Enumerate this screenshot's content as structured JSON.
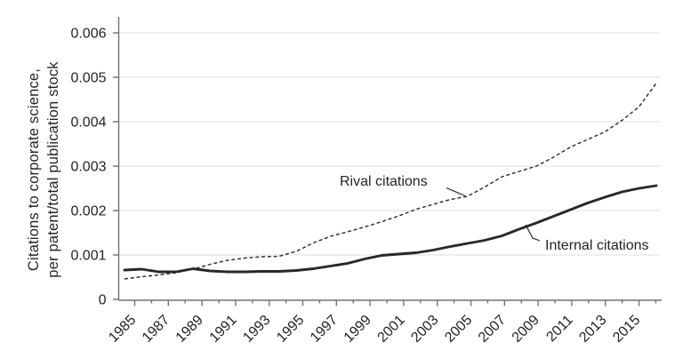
{
  "figure": {
    "ylabel_line1": "Citations to corporate science,",
    "ylabel_line2": "per patent/total publication stock"
  },
  "chart_data": {
    "type": "line",
    "title": "",
    "xlabel": "",
    "ylabel": "Citations to corporate science, per patent/total publication stock",
    "x": [
      1985,
      1986,
      1987,
      1988,
      1989,
      1990,
      1991,
      1992,
      1993,
      1994,
      1995,
      1996,
      1997,
      1998,
      1999,
      2000,
      2001,
      2002,
      2003,
      2004,
      2005,
      2006,
      2007,
      2008,
      2009,
      2010,
      2011,
      2012,
      2013,
      2014,
      2015,
      2016
    ],
    "series": [
      {
        "name": "Rival citations",
        "style": "dashed",
        "values": [
          0.00046,
          0.00051,
          0.00055,
          0.0006,
          0.00068,
          0.00079,
          0.00088,
          0.00093,
          0.00096,
          0.00097,
          0.00108,
          0.00127,
          0.00142,
          0.00152,
          0.00163,
          0.00175,
          0.00188,
          0.00203,
          0.00214,
          0.00225,
          0.00232,
          0.00253,
          0.00276,
          0.00288,
          0.003,
          0.0032,
          0.00343,
          0.0036,
          0.00377,
          0.00403,
          0.00434,
          0.00487
        ]
      },
      {
        "name": "Internal citations",
        "style": "solid",
        "values": [
          0.00066,
          0.00068,
          0.00062,
          0.00062,
          0.00069,
          0.00064,
          0.00062,
          0.00062,
          0.00063,
          0.00063,
          0.00065,
          0.00069,
          0.00075,
          0.00081,
          0.00091,
          0.00099,
          0.00102,
          0.00105,
          0.00111,
          0.00119,
          0.00126,
          0.00133,
          0.00143,
          0.00158,
          0.00172,
          0.00187,
          0.00202,
          0.00217,
          0.0023,
          0.00242,
          0.0025,
          0.00256
        ]
      }
    ],
    "x_tick_labels": [
      "1985",
      "1987",
      "1989",
      "1991",
      "1993",
      "1995",
      "1997",
      "1999",
      "2001",
      "2003",
      "2005",
      "2007",
      "2009",
      "2011",
      "2013",
      "2015"
    ],
    "y_tick_labels": [
      "0",
      "0.001",
      "0.002",
      "0.003",
      "0.004",
      "0.005",
      "0.006"
    ],
    "ylim": [
      0,
      0.0063
    ],
    "xlim": [
      1984.3,
      2016.3
    ],
    "grid": "horizontal",
    "legend_position": "inline-annotations",
    "colors": {
      "line": "#27272e",
      "axis": "#71717a",
      "grid": "#dcdcdc",
      "text": "#232329",
      "background": "#ffffff"
    }
  },
  "annotations": {
    "rival_label": "Rival citations",
    "internal_label": "Internal citations"
  }
}
